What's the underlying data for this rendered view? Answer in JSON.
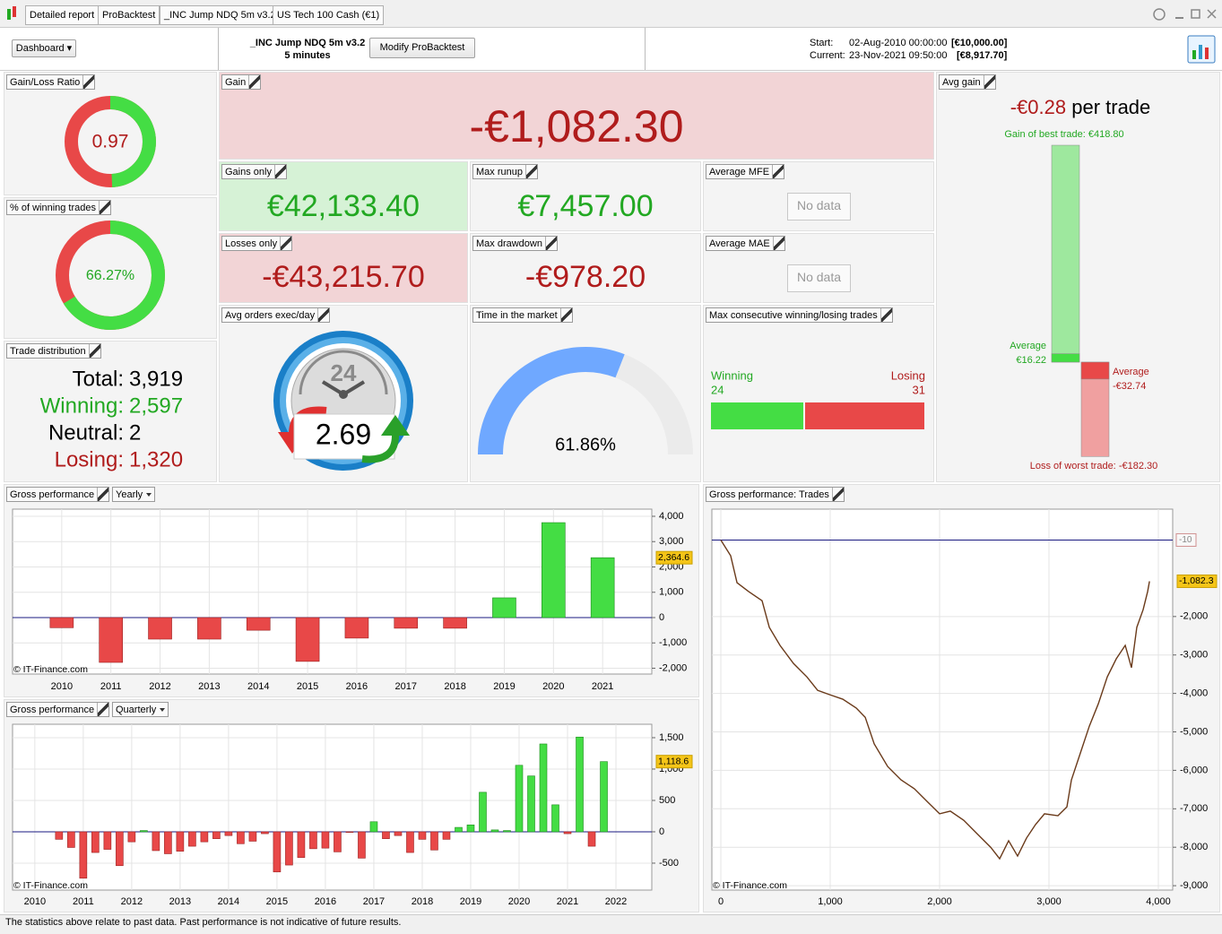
{
  "tabs": [
    "Detailed report",
    "ProBacktest",
    "_INC Jump NDQ 5m v3.2",
    "US Tech 100 Cash (€1)"
  ],
  "toolbar": {
    "dashboard": "Dashboard",
    "strategy": "_INC Jump NDQ 5m v3.2",
    "timeframe": "5 minutes",
    "modify": "Modify ProBacktest",
    "start_label": "Start:",
    "start": "02-Aug-2010 00:00:00",
    "start_capital": "[€10,000.00]",
    "current_label": "Current:",
    "current": "23-Nov-2021 09:50:00",
    "current_capital": "[€8,917.70]"
  },
  "panels": {
    "gain_loss_ratio": {
      "title": "Gain/Loss Ratio",
      "value": 0.97
    },
    "winning_pct": {
      "title": "% of winning trades",
      "value": 66.27,
      "value_label": "66.27%"
    },
    "trade_distribution": {
      "title": "Trade distribution",
      "rows": [
        {
          "label": "Total:",
          "value": "3,919"
        },
        {
          "label": "Winning:",
          "value": "2,597"
        },
        {
          "label": "Neutral:",
          "value": "2"
        },
        {
          "label": "Losing:",
          "value": "1,320"
        }
      ]
    },
    "gain": {
      "title": "Gain",
      "value": "-€1,082.30"
    },
    "gains_only": {
      "title": "Gains only",
      "value": "€42,133.40"
    },
    "max_runup": {
      "title": "Max runup",
      "value": "€7,457.00"
    },
    "average_mfe": {
      "title": "Average MFE",
      "value": "No data"
    },
    "losses_only": {
      "title": "Losses only",
      "value": "-€43,215.70"
    },
    "max_drawdown": {
      "title": "Max drawdown",
      "value": "-€978.20"
    },
    "average_mae": {
      "title": "Average MAE",
      "value": "No data"
    },
    "avg_orders": {
      "title": "Avg orders exec/day",
      "value": "2.69",
      "dial": "24"
    },
    "time_in_market": {
      "title": "Time in the market",
      "value": 61.86,
      "value_label": "61.86%"
    },
    "max_consecutive": {
      "title": "Max consecutive winning/losing trades",
      "winning_label": "Winning",
      "winning": 24,
      "losing_label": "Losing",
      "losing": 31
    },
    "avg_gain": {
      "title": "Avg gain",
      "value": "-€0.28",
      "unit": "per trade",
      "best": {
        "label": "Gain of best trade:",
        "value": 418.8,
        "value_label": "€418.80"
      },
      "avg_win": {
        "label": "Average",
        "value": 16.22,
        "value_label": "€16.22"
      },
      "avg_loss": {
        "label": "Average",
        "value": -32.74,
        "value_label": "-€32.74"
      },
      "worst": {
        "label": "Loss of worst trade:",
        "value": -182.3,
        "value_label": "-€182.30"
      }
    }
  },
  "charts": [
    {
      "type": "bar",
      "title": "Gross performance",
      "period": "Yearly",
      "categories": [
        "2010",
        "2011",
        "2012",
        "2013",
        "2014",
        "2015",
        "2016",
        "2017",
        "2018",
        "2019",
        "2020",
        "2021"
      ],
      "values": [
        -400,
        -1770,
        -850,
        -850,
        -500,
        -1730,
        -810,
        -420,
        -420,
        780,
        3750,
        2364.6
      ],
      "last_label": "2,364.6",
      "ylim": [
        -2230,
        4283
      ],
      "yticks": [
        {
          "value": 4000,
          "label": "4,000"
        },
        {
          "value": 3000,
          "label": "3,000"
        },
        {
          "value": 2000,
          "label": "2,000"
        },
        {
          "value": 1000,
          "label": "1,000"
        },
        0,
        {
          "value": -1000,
          "label": "-1,000"
        },
        {
          "value": -2000,
          "label": "-2,000"
        }
      ],
      "up_color": "#44dd44",
      "down_color": "#e84848",
      "source": "© IT-Finance.com"
    },
    {
      "type": "bar",
      "title": "Gross performance",
      "period": "Quarterly",
      "x": [
        2010.5,
        2010.75,
        2011,
        2011.25,
        2011.5,
        2011.75,
        2012,
        2012.25,
        2012.5,
        2012.75,
        2013,
        2013.25,
        2013.5,
        2013.75,
        2014,
        2014.25,
        2014.5,
        2014.75,
        2015,
        2015.25,
        2015.5,
        2015.75,
        2016,
        2016.25,
        2016.5,
        2016.75,
        2017,
        2017.25,
        2017.5,
        2017.75,
        2018,
        2018.25,
        2018.5,
        2018.75,
        2019,
        2019.25,
        2019.5,
        2019.75,
        2020,
        2020.25,
        2020.5,
        2020.75,
        2021,
        2021.25,
        2021.5,
        2021.75
      ],
      "values": [
        -120,
        -250,
        -740,
        -330,
        -280,
        -540,
        -160,
        20,
        -300,
        -350,
        -310,
        -230,
        -160,
        -110,
        -60,
        -190,
        -150,
        -30,
        -640,
        -530,
        -410,
        -270,
        -260,
        -320,
        -10,
        -420,
        160,
        -110,
        -60,
        -330,
        -120,
        -290,
        -120,
        70,
        110,
        630,
        30,
        20,
        1060,
        890,
        1400,
        430,
        -30,
        1510,
        -230,
        1118.6
      ],
      "last_label": "1,118.6",
      "xlim": [
        2009.54,
        2022.74
      ],
      "xticks": [
        2010,
        2011,
        2012,
        2013,
        2014,
        2015,
        2016,
        2017,
        2018,
        2019,
        2020,
        2021,
        2022
      ],
      "ylim": [
        -929,
        1714
      ],
      "yticks": [
        {
          "value": 1500,
          "label": "1,500"
        },
        {
          "value": 1000,
          "label": "1,000"
        },
        500,
        0,
        -500
      ],
      "up_color": "#44dd44",
      "down_color": "#e84848",
      "source": "© IT-Finance.com"
    },
    {
      "type": "line",
      "title": "Gross performance: Trades",
      "x": [
        0,
        90,
        148,
        254,
        377,
        443,
        541,
        664,
        787,
        885,
        992,
        1115,
        1238,
        1320,
        1402,
        1525,
        1648,
        1770,
        1893,
        2000,
        2098,
        2221,
        2344,
        2467,
        2549,
        2631,
        2713,
        2795,
        2877,
        2959,
        3082,
        3164,
        3205,
        3287,
        3369,
        3451,
        3533,
        3615,
        3697,
        3754,
        3803,
        3861,
        3902,
        3919
      ],
      "values": [
        -10,
        -420,
        -1120,
        -1350,
        -1590,
        -2280,
        -2750,
        -3220,
        -3570,
        -3920,
        -4030,
        -4150,
        -4380,
        -4620,
        -5310,
        -5900,
        -6250,
        -6480,
        -6830,
        -7130,
        -7060,
        -7300,
        -7650,
        -8000,
        -8300,
        -7830,
        -8230,
        -7760,
        -7410,
        -7130,
        -7180,
        -6950,
        -6250,
        -5550,
        -4850,
        -4270,
        -3570,
        -3100,
        -2750,
        -3330,
        -2280,
        -1820,
        -1350,
        -1082.3
      ],
      "last_label": "-1,082.3",
      "reference": -10,
      "xlim": [
        -82,
        4131
      ],
      "xticks": [
        0,
        {
          "value": 1000,
          "label": "1,000"
        },
        {
          "value": 2000,
          "label": "2,000"
        },
        {
          "value": 3000,
          "label": "3,000"
        },
        {
          "value": 4000,
          "label": "4,000"
        }
      ],
      "ylim": [
        -9114,
        793
      ],
      "yticks": [
        {
          "value": -2000,
          "label": "-2,000"
        },
        {
          "value": -3000,
          "label": "-3,000"
        },
        {
          "value": -4000,
          "label": "-4,000"
        },
        {
          "value": -5000,
          "label": "-5,000"
        },
        {
          "value": -6000,
          "label": "-6,000"
        },
        {
          "value": -7000,
          "label": "-7,000"
        },
        {
          "value": -8000,
          "label": "-8,000"
        },
        {
          "value": -9000,
          "label": "-9,000"
        }
      ],
      "color": "#6a3a1a",
      "reference_color": "#1a1a80",
      "source": "© IT-Finance.com"
    }
  ],
  "footer": "The statistics above relate to past data. Past performance is not indicative of future results."
}
